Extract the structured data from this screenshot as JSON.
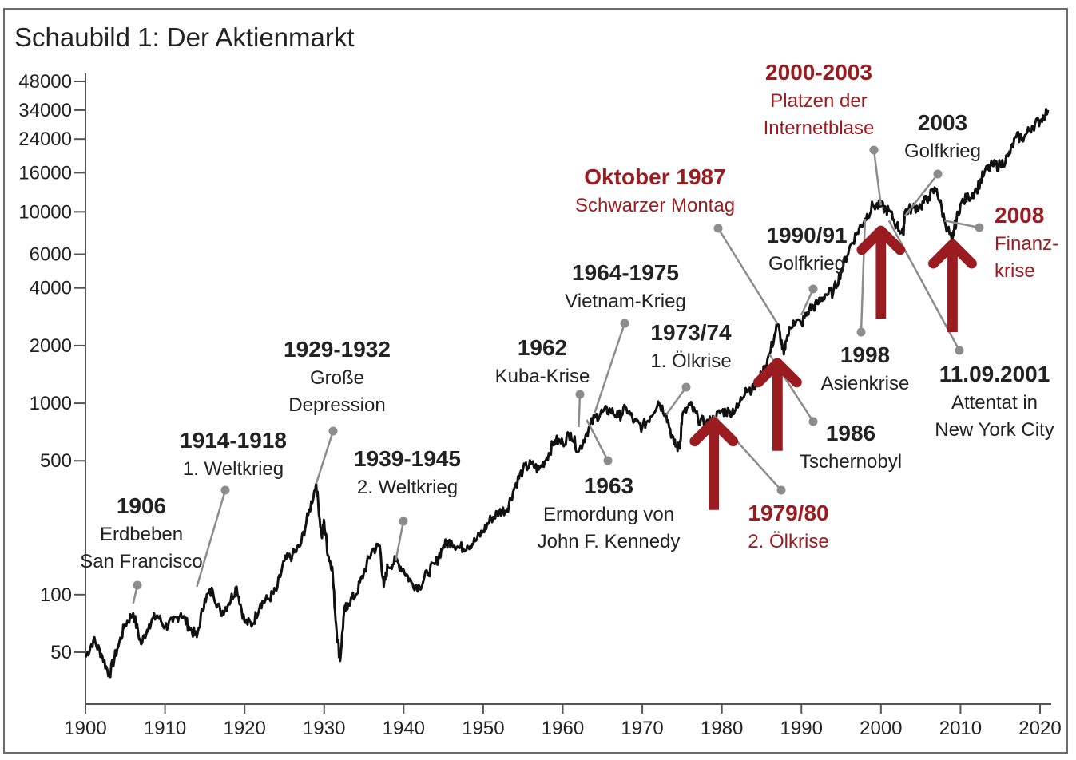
{
  "colors": {
    "dark": "#222222",
    "red": "#9b1c20",
    "pointer": "#8c8c8c",
    "axis": "#555555"
  },
  "chart_data": {
    "type": "line",
    "title": "Schaubild 1: Der Aktienmarkt",
    "xlabel": "",
    "ylabel": "",
    "y_scale": "log",
    "xlim": [
      1900,
      2021
    ],
    "ylim": [
      35,
      52000
    ],
    "x_ticks": [
      1900,
      1910,
      1920,
      1930,
      1940,
      1950,
      1960,
      1970,
      1980,
      1990,
      2000,
      2010,
      2020
    ],
    "y_ticks": [
      50,
      100,
      500,
      1000,
      2000,
      4000,
      6000,
      10000,
      16000,
      24000,
      34000,
      48000
    ],
    "grid": false,
    "series": [
      {
        "x": [
          1900,
          1901,
          1902,
          1903,
          1904,
          1905,
          1906,
          1907,
          1908,
          1909,
          1910,
          1911,
          1912,
          1913,
          1914,
          1915,
          1916,
          1917,
          1918,
          1919,
          1920,
          1921,
          1922,
          1923,
          1924,
          1925,
          1926,
          1927,
          1928,
          1929,
          1929.7,
          1930,
          1930.5,
          1931,
          1931.5,
          1932,
          1932.5,
          1933,
          1934,
          1935,
          1936,
          1937,
          1937.5,
          1938,
          1939,
          1940,
          1941,
          1942,
          1943,
          1944,
          1945,
          1946,
          1947,
          1948,
          1949,
          1950,
          1951,
          1952,
          1953,
          1954,
          1955,
          1956,
          1957,
          1958,
          1959,
          1960,
          1961,
          1962,
          1963,
          1964,
          1965,
          1966,
          1967,
          1968,
          1969,
          1970,
          1971,
          1972,
          1973,
          1974,
          1974.7,
          1975,
          1976,
          1977,
          1978,
          1979,
          1980,
          1981,
          1982,
          1983,
          1984,
          1985,
          1986,
          1987,
          1987.8,
          1988,
          1989,
          1990,
          1991,
          1992,
          1993,
          1994,
          1995,
          1996,
          1997,
          1998,
          1999,
          2000,
          2001,
          2002,
          2002.8,
          2003,
          2004,
          2005,
          2006,
          2007,
          2008,
          2009,
          2009.2,
          2010,
          2011,
          2012,
          2013,
          2014,
          2015,
          2016,
          2017,
          2018,
          2019,
          2020,
          2021
        ],
        "values": [
          47,
          58,
          49,
          38,
          52,
          70,
          80,
          55,
          70,
          78,
          68,
          72,
          80,
          68,
          60,
          95,
          105,
          80,
          90,
          110,
          72,
          70,
          90,
          95,
          105,
          150,
          160,
          180,
          260,
          380,
          200,
          240,
          160,
          140,
          70,
          45,
          80,
          90,
          100,
          130,
          170,
          180,
          110,
          140,
          150,
          135,
          115,
          110,
          130,
          145,
          180,
          190,
          175,
          180,
          190,
          215,
          250,
          270,
          280,
          370,
          450,
          480,
          450,
          520,
          640,
          620,
          700,
          560,
          700,
          840,
          900,
          920,
          850,
          940,
          800,
          750,
          850,
          1020,
          880,
          610,
          580,
          850,
          980,
          830,
          780,
          830,
          910,
          900,
          950,
          1200,
          1180,
          1400,
          1800,
          2600,
          1800,
          2100,
          2700,
          2600,
          3100,
          3300,
          3700,
          3800,
          4900,
          6400,
          7800,
          9200,
          10800,
          10700,
          10100,
          8500,
          7600,
          10000,
          10500,
          10700,
          12000,
          13200,
          9000,
          7000,
          8100,
          11000,
          12000,
          13000,
          16000,
          17500,
          17500,
          19500,
          24500,
          24500,
          28000,
          30000,
          34000
        ]
      }
    ],
    "annotations": [
      {
        "year": 1906,
        "value": 90,
        "lines": [
          "1906",
          "Erdbeben",
          "San Francisco"
        ],
        "color": "dark"
      },
      {
        "year": 1914,
        "value": 110,
        "lines": [
          "1914-1918",
          "1. Weltkrieg"
        ],
        "color": "dark"
      },
      {
        "year": 1929,
        "value": 380,
        "lines": [
          "1929-1932",
          "Große",
          "Depression"
        ],
        "color": "dark"
      },
      {
        "year": 1939,
        "value": 150,
        "lines": [
          "1939-1945",
          "2. Weltkrieg"
        ],
        "color": "dark"
      },
      {
        "year": 1962,
        "value": 750,
        "lines": [
          "1962",
          "Kuba-Krise"
        ],
        "color": "dark"
      },
      {
        "year": 1963,
        "value": 820,
        "lines": [
          "1963",
          "Ermordung von",
          "John F. Kennedy"
        ],
        "color": "dark"
      },
      {
        "year": 1964,
        "value": 890,
        "lines": [
          "1964-1975",
          "Vietnam-Krieg"
        ],
        "color": "dark"
      },
      {
        "year": 1973,
        "value": 870,
        "lines": [
          "1973/74",
          "1. Ölkrise"
        ],
        "color": "dark"
      },
      {
        "year": 1979,
        "value": 860,
        "lines": [
          "1979/80",
          "2. Ölkrise"
        ],
        "color": "red"
      },
      {
        "year": 1986,
        "value": 1800,
        "lines": [
          "1986",
          "Tschernobyl"
        ],
        "color": "dark"
      },
      {
        "year": 1987,
        "value": 2600,
        "lines": [
          "Oktober 1987",
          "Schwarzer Montag"
        ],
        "color": "red"
      },
      {
        "year": 1990,
        "value": 2900,
        "lines": [
          "1990/91",
          "Golfkrieg"
        ],
        "color": "dark"
      },
      {
        "year": 1998,
        "value": 9200,
        "lines": [
          "1998",
          "Asienkrise"
        ],
        "color": "dark"
      },
      {
        "year": 2000,
        "value": 10800,
        "lines": [
          "2000-2003",
          "Platzen der",
          "Internetblase"
        ],
        "color": "red"
      },
      {
        "year": 2001,
        "value": 9000,
        "lines": [
          "11.09.2001",
          "Attentat in",
          "New York City"
        ],
        "color": "dark"
      },
      {
        "year": 2003,
        "value": 9500,
        "lines": [
          "2003",
          "Golfkrieg"
        ],
        "color": "dark"
      },
      {
        "year": 2008,
        "value": 9000,
        "lines": [
          "2008",
          "Finanz-",
          "krise"
        ],
        "color": "red"
      }
    ],
    "arrows": [
      {
        "year": 1979,
        "value": 860
      },
      {
        "year": 1987,
        "value": 1750
      },
      {
        "year": 2000,
        "value": 8600
      },
      {
        "year": 2009,
        "value": 7300
      }
    ]
  }
}
